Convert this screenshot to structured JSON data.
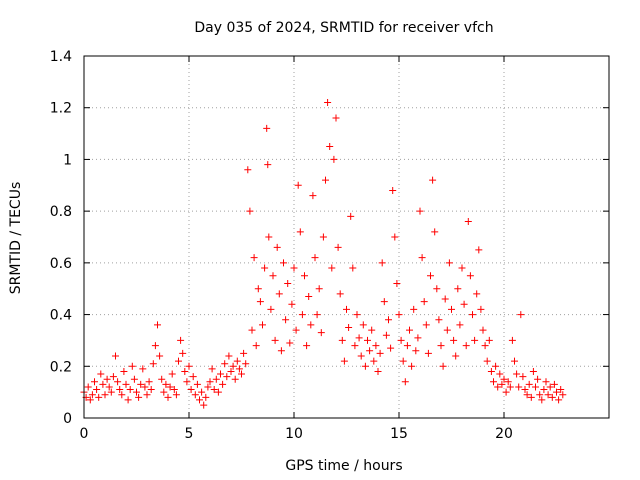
{
  "chart_data": {
    "type": "scatter",
    "title": "Day 035 of 2024, SRMTID for receiver vfch",
    "xlabel": "GPS time / hours",
    "ylabel": "SRMTID / TECUs",
    "xlim": [
      0,
      25
    ],
    "ylim": [
      0,
      1.4
    ],
    "x_ticks": [
      0,
      5,
      10,
      15,
      20
    ],
    "x_tick_labels": [
      "0",
      "5",
      "10",
      "15",
      "20"
    ],
    "y_ticks": [
      0,
      0.2,
      0.4,
      0.6,
      0.8,
      1.0,
      1.2,
      1.4
    ],
    "y_tick_labels": [
      "0",
      "0.2",
      "0.4",
      "0.6",
      "0.8",
      "1",
      "1.2",
      "1.4"
    ],
    "grid": true,
    "marker": "+",
    "color": "#ff0000",
    "series": [
      {
        "name": "SRMTID",
        "points": [
          [
            0.0,
            0.1
          ],
          [
            0.1,
            0.08
          ],
          [
            0.2,
            0.12
          ],
          [
            0.3,
            0.07
          ],
          [
            0.4,
            0.09
          ],
          [
            0.5,
            0.14
          ],
          [
            0.6,
            0.11
          ],
          [
            0.7,
            0.08
          ],
          [
            0.8,
            0.17
          ],
          [
            0.9,
            0.13
          ],
          [
            1.0,
            0.09
          ],
          [
            1.1,
            0.15
          ],
          [
            1.2,
            0.12
          ],
          [
            1.3,
            0.1
          ],
          [
            1.4,
            0.16
          ],
          [
            1.5,
            0.24
          ],
          [
            1.6,
            0.14
          ],
          [
            1.7,
            0.11
          ],
          [
            1.8,
            0.09
          ],
          [
            1.9,
            0.18
          ],
          [
            2.0,
            0.13
          ],
          [
            2.1,
            0.07
          ],
          [
            2.2,
            0.11
          ],
          [
            2.3,
            0.2
          ],
          [
            2.4,
            0.15
          ],
          [
            2.5,
            0.1
          ],
          [
            2.6,
            0.08
          ],
          [
            2.7,
            0.13
          ],
          [
            2.8,
            0.19
          ],
          [
            2.9,
            0.12
          ],
          [
            3.0,
            0.09
          ],
          [
            3.1,
            0.14
          ],
          [
            3.2,
            0.11
          ],
          [
            3.3,
            0.21
          ],
          [
            3.4,
            0.28
          ],
          [
            3.5,
            0.36
          ],
          [
            3.6,
            0.24
          ],
          [
            3.7,
            0.15
          ],
          [
            3.8,
            0.1
          ],
          [
            3.9,
            0.13
          ],
          [
            4.0,
            0.08
          ],
          [
            4.1,
            0.12
          ],
          [
            4.2,
            0.17
          ],
          [
            4.3,
            0.11
          ],
          [
            4.4,
            0.09
          ],
          [
            4.5,
            0.22
          ],
          [
            4.6,
            0.3
          ],
          [
            4.7,
            0.25
          ],
          [
            4.8,
            0.18
          ],
          [
            4.9,
            0.14
          ],
          [
            5.0,
            0.2
          ],
          [
            5.1,
            0.11
          ],
          [
            5.2,
            0.16
          ],
          [
            5.3,
            0.09
          ],
          [
            5.4,
            0.13
          ],
          [
            5.5,
            0.07
          ],
          [
            5.6,
            0.1
          ],
          [
            5.7,
            0.05
          ],
          [
            5.8,
            0.08
          ],
          [
            5.9,
            0.12
          ],
          [
            6.0,
            0.14
          ],
          [
            6.1,
            0.19
          ],
          [
            6.2,
            0.11
          ],
          [
            6.3,
            0.15
          ],
          [
            6.4,
            0.1
          ],
          [
            6.5,
            0.17
          ],
          [
            6.6,
            0.13
          ],
          [
            6.7,
            0.21
          ],
          [
            6.8,
            0.16
          ],
          [
            6.9,
            0.24
          ],
          [
            7.0,
            0.18
          ],
          [
            7.1,
            0.2
          ],
          [
            7.2,
            0.15
          ],
          [
            7.3,
            0.22
          ],
          [
            7.4,
            0.19
          ],
          [
            7.5,
            0.17
          ],
          [
            7.6,
            0.25
          ],
          [
            7.7,
            0.21
          ],
          [
            7.8,
            0.96
          ],
          [
            7.9,
            0.8
          ],
          [
            8.0,
            0.34
          ],
          [
            8.1,
            0.62
          ],
          [
            8.2,
            0.28
          ],
          [
            8.3,
            0.5
          ],
          [
            8.4,
            0.45
          ],
          [
            8.5,
            0.36
          ],
          [
            8.6,
            0.58
          ],
          [
            8.7,
            1.12
          ],
          [
            8.75,
            0.98
          ],
          [
            8.8,
            0.7
          ],
          [
            8.9,
            0.42
          ],
          [
            9.0,
            0.55
          ],
          [
            9.1,
            0.3
          ],
          [
            9.2,
            0.66
          ],
          [
            9.3,
            0.48
          ],
          [
            9.4,
            0.26
          ],
          [
            9.5,
            0.6
          ],
          [
            9.6,
            0.38
          ],
          [
            9.7,
            0.52
          ],
          [
            9.8,
            0.29
          ],
          [
            9.9,
            0.44
          ],
          [
            10.0,
            0.58
          ],
          [
            10.1,
            0.34
          ],
          [
            10.2,
            0.9
          ],
          [
            10.3,
            0.72
          ],
          [
            10.4,
            0.4
          ],
          [
            10.5,
            0.55
          ],
          [
            10.6,
            0.28
          ],
          [
            10.7,
            0.47
          ],
          [
            10.8,
            0.36
          ],
          [
            10.9,
            0.86
          ],
          [
            11.0,
            0.62
          ],
          [
            11.1,
            0.4
          ],
          [
            11.2,
            0.5
          ],
          [
            11.3,
            0.33
          ],
          [
            11.4,
            0.7
          ],
          [
            11.5,
            0.92
          ],
          [
            11.6,
            1.22
          ],
          [
            11.7,
            1.05
          ],
          [
            11.8,
            0.58
          ],
          [
            11.9,
            1.0
          ],
          [
            12.0,
            1.16
          ],
          [
            12.1,
            0.66
          ],
          [
            12.2,
            0.48
          ],
          [
            12.3,
            0.3
          ],
          [
            12.4,
            0.22
          ],
          [
            12.5,
            0.42
          ],
          [
            12.6,
            0.35
          ],
          [
            12.7,
            0.78
          ],
          [
            12.8,
            0.58
          ],
          [
            12.9,
            0.28
          ],
          [
            13.0,
            0.4
          ],
          [
            13.1,
            0.31
          ],
          [
            13.2,
            0.24
          ],
          [
            13.3,
            0.36
          ],
          [
            13.4,
            0.2
          ],
          [
            13.5,
            0.3
          ],
          [
            13.6,
            0.26
          ],
          [
            13.7,
            0.34
          ],
          [
            13.8,
            0.22
          ],
          [
            13.9,
            0.28
          ],
          [
            14.0,
            0.18
          ],
          [
            14.1,
            0.25
          ],
          [
            14.2,
            0.6
          ],
          [
            14.3,
            0.45
          ],
          [
            14.4,
            0.32
          ],
          [
            14.5,
            0.38
          ],
          [
            14.6,
            0.27
          ],
          [
            14.7,
            0.88
          ],
          [
            14.8,
            0.7
          ],
          [
            14.9,
            0.52
          ],
          [
            15.0,
            0.4
          ],
          [
            15.1,
            0.3
          ],
          [
            15.2,
            0.22
          ],
          [
            15.3,
            0.14
          ],
          [
            15.4,
            0.28
          ],
          [
            15.5,
            0.34
          ],
          [
            15.6,
            0.2
          ],
          [
            15.7,
            0.42
          ],
          [
            15.8,
            0.26
          ],
          [
            15.9,
            0.31
          ],
          [
            16.0,
            0.8
          ],
          [
            16.1,
            0.62
          ],
          [
            16.2,
            0.45
          ],
          [
            16.3,
            0.36
          ],
          [
            16.4,
            0.25
          ],
          [
            16.5,
            0.55
          ],
          [
            16.6,
            0.92
          ],
          [
            16.7,
            0.72
          ],
          [
            16.8,
            0.5
          ],
          [
            16.9,
            0.38
          ],
          [
            17.0,
            0.28
          ],
          [
            17.1,
            0.2
          ],
          [
            17.2,
            0.46
          ],
          [
            17.3,
            0.34
          ],
          [
            17.4,
            0.6
          ],
          [
            17.5,
            0.42
          ],
          [
            17.6,
            0.3
          ],
          [
            17.7,
            0.24
          ],
          [
            17.8,
            0.5
          ],
          [
            17.9,
            0.36
          ],
          [
            18.0,
            0.58
          ],
          [
            18.1,
            0.44
          ],
          [
            18.2,
            0.28
          ],
          [
            18.3,
            0.76
          ],
          [
            18.4,
            0.55
          ],
          [
            18.5,
            0.4
          ],
          [
            18.6,
            0.3
          ],
          [
            18.7,
            0.48
          ],
          [
            18.8,
            0.65
          ],
          [
            18.9,
            0.42
          ],
          [
            19.0,
            0.34
          ],
          [
            19.1,
            0.28
          ],
          [
            19.2,
            0.22
          ],
          [
            19.3,
            0.3
          ],
          [
            19.4,
            0.18
          ],
          [
            19.5,
            0.14
          ],
          [
            19.6,
            0.2
          ],
          [
            19.7,
            0.12
          ],
          [
            19.8,
            0.17
          ],
          [
            19.9,
            0.13
          ],
          [
            20.0,
            0.15
          ],
          [
            20.1,
            0.1
          ],
          [
            20.2,
            0.14
          ],
          [
            20.3,
            0.12
          ],
          [
            20.4,
            0.3
          ],
          [
            20.5,
            0.22
          ],
          [
            20.6,
            0.17
          ],
          [
            20.7,
            0.12
          ],
          [
            20.8,
            0.4
          ],
          [
            20.9,
            0.16
          ],
          [
            21.0,
            0.11
          ],
          [
            21.1,
            0.09
          ],
          [
            21.2,
            0.13
          ],
          [
            21.3,
            0.08
          ],
          [
            21.4,
            0.18
          ],
          [
            21.5,
            0.12
          ],
          [
            21.6,
            0.15
          ],
          [
            21.7,
            0.09
          ],
          [
            21.8,
            0.07
          ],
          [
            21.9,
            0.11
          ],
          [
            22.0,
            0.14
          ],
          [
            22.1,
            0.09
          ],
          [
            22.2,
            0.12
          ],
          [
            22.3,
            0.08
          ],
          [
            22.4,
            0.13
          ],
          [
            22.5,
            0.1
          ],
          [
            22.6,
            0.07
          ],
          [
            22.7,
            0.11
          ],
          [
            22.8,
            0.09
          ]
        ]
      }
    ]
  }
}
